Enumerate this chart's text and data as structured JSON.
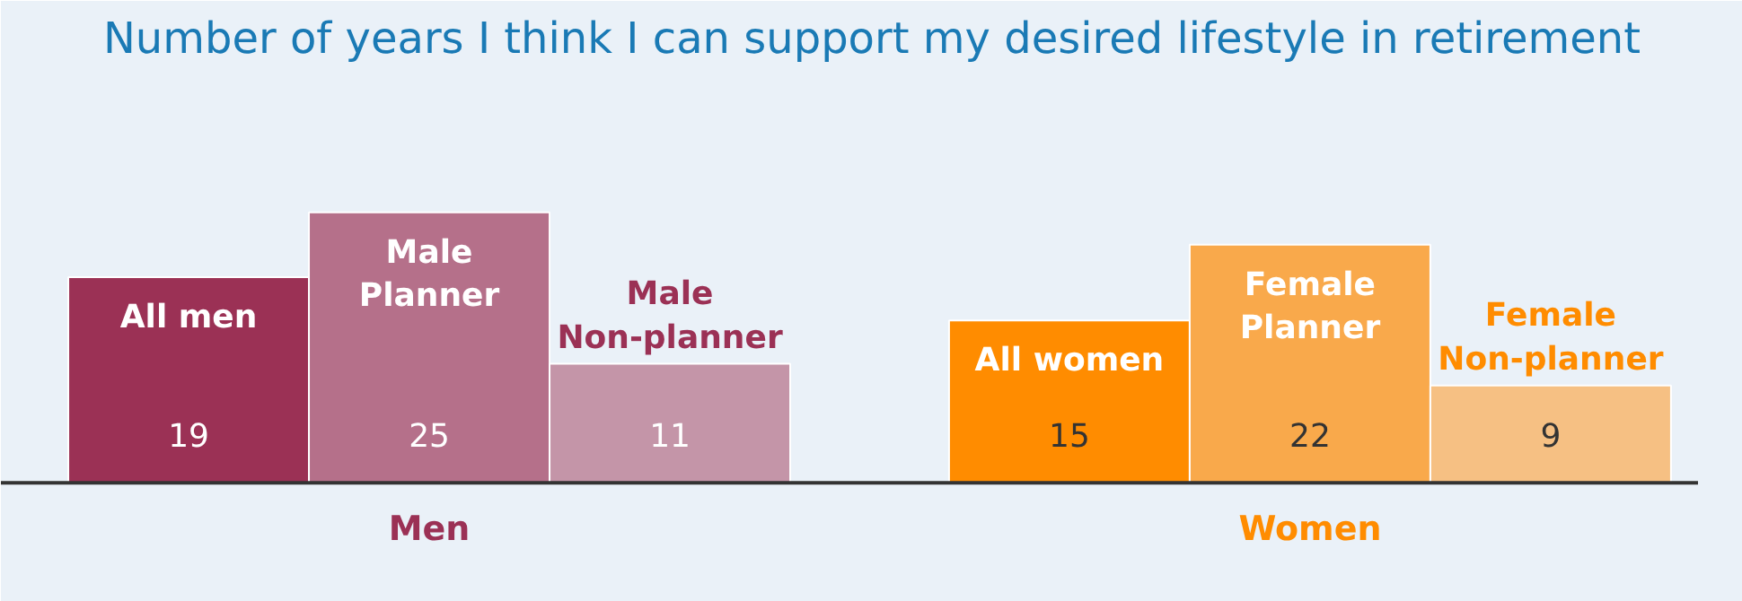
{
  "chart_data": {
    "type": "bar",
    "title": "Number of years I think I can support my desired lifestyle in retirement",
    "categories": [
      "All men",
      "Male\nPlanner",
      "Male\nNon-planner",
      null,
      "All women",
      "Female\nPlanner",
      "Female\nNon-planner"
    ],
    "values": [
      19,
      25,
      11,
      null,
      15,
      22,
      9
    ],
    "colors": [
      "#9b3155",
      "#b5708a",
      "#c495a8",
      "#eaf1f8",
      "#ff8c00",
      "#f9a94b",
      "#f6c083"
    ],
    "data_labels": true,
    "annotations": [
      "Men",
      "Women"
    ]
  }
}
